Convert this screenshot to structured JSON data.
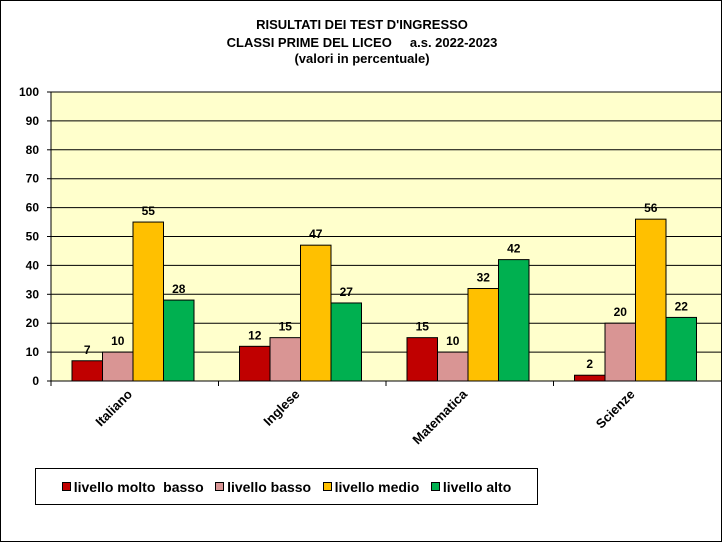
{
  "chart_data": {
    "type": "bar",
    "title": [
      "RISULTATI DEI TEST D'INGRESSO",
      "CLASSI PRIME DEL LICEO     a.s. 2022-2023",
      "(valori in percentuale)"
    ],
    "categories": [
      "Italiano",
      "Inglese",
      "Matematica",
      "Scienze"
    ],
    "series": [
      {
        "name": "livello molto  basso",
        "color": "#C00000",
        "values": [
          7,
          12,
          15,
          2
        ]
      },
      {
        "name": "livello basso",
        "color": "#D99594",
        "values": [
          10,
          15,
          10,
          20
        ]
      },
      {
        "name": "livello medio",
        "color": "#FFC000",
        "values": [
          55,
          47,
          32,
          56
        ]
      },
      {
        "name": "livello alto",
        "color": "#00B050",
        "values": [
          28,
          27,
          42,
          22
        ]
      }
    ],
    "ylim": [
      0,
      100
    ],
    "yticks": [
      0,
      10,
      20,
      30,
      40,
      50,
      60,
      70,
      80,
      90,
      100
    ],
    "grid": true,
    "plot_background": "#FFFFCC",
    "legend_position": "bottom"
  }
}
